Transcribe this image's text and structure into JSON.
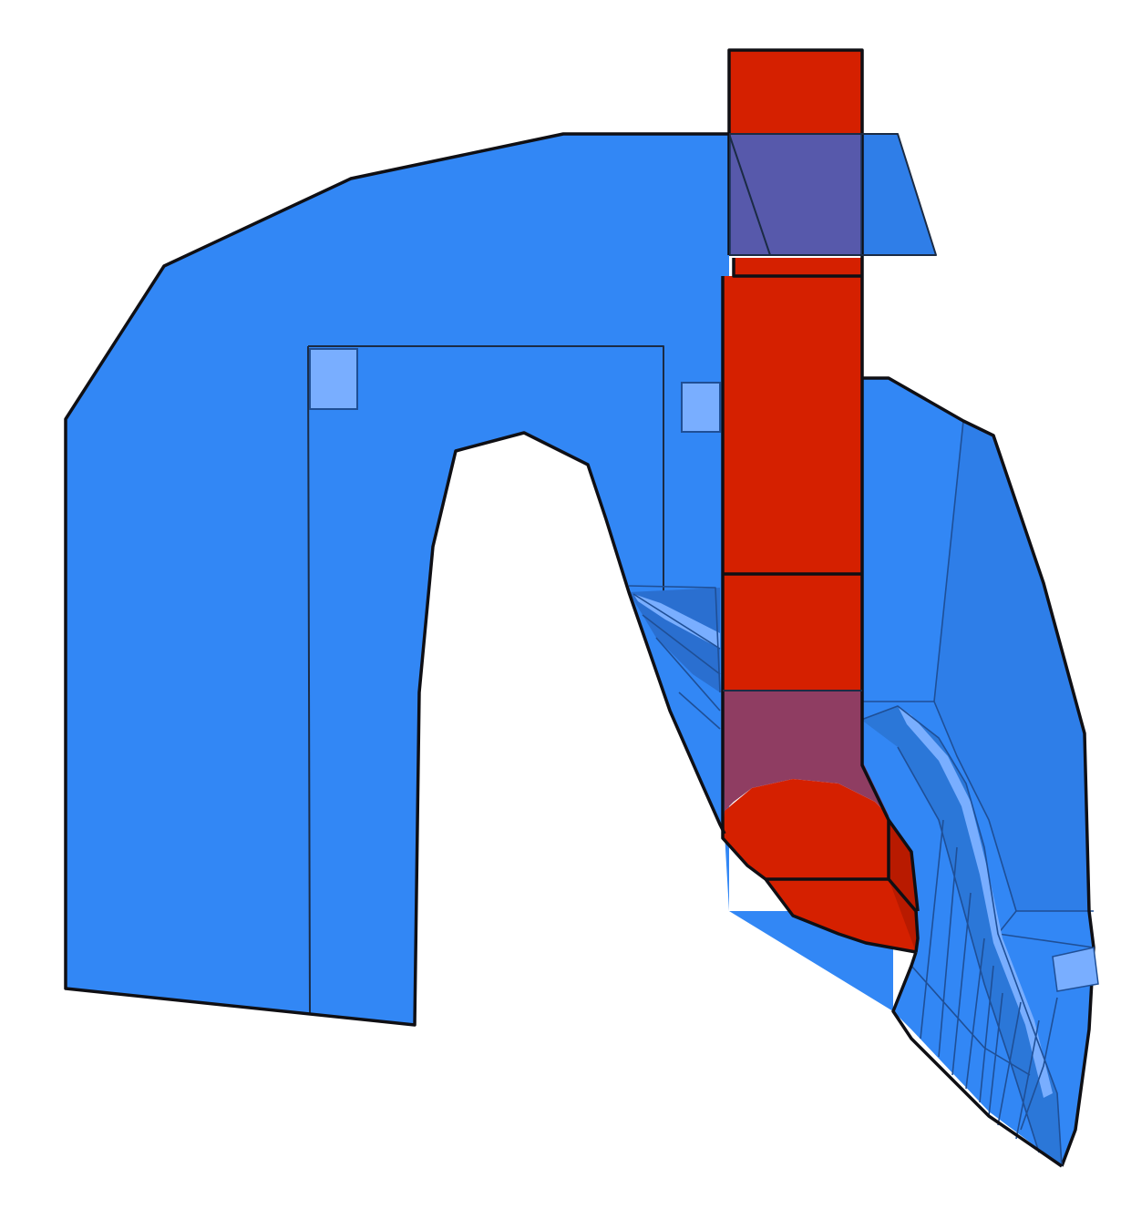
{
  "scene": {
    "background": "#ffffff",
    "colors": {
      "body_blue": "#3287f5",
      "body_blue_dark": "#2b77d8",
      "body_blue_shadow": "#2a6fd0",
      "highlight_blue": "#79aeff",
      "pipe_red": "#d52000",
      "pipe_red_dark": "#b81a00",
      "overlap_purple": "#66478f",
      "overlap_mauve": "#8f3d62",
      "outline": "#141414"
    }
  }
}
